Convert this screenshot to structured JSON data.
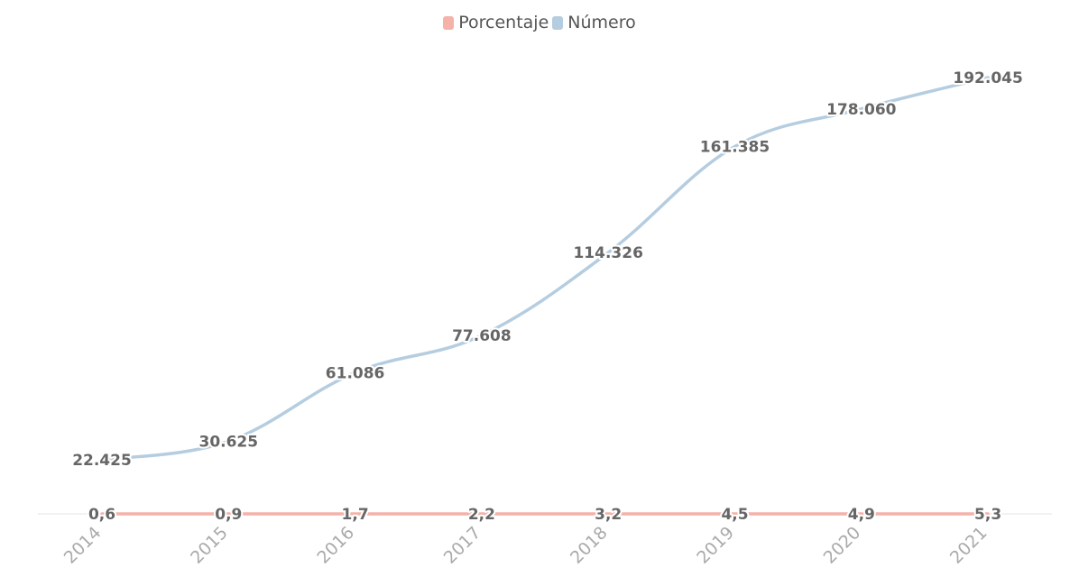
{
  "chart_data": {
    "type": "line",
    "categories": [
      "2014",
      "2015",
      "2016",
      "2017",
      "2018",
      "2019",
      "2020",
      "2021"
    ],
    "series": [
      {
        "name": "Porcentaje",
        "color": "#f4b2a8",
        "values": [
          0.6,
          0.9,
          1.7,
          2.2,
          3.2,
          4.5,
          4.9,
          5.3
        ],
        "labels": [
          "0,6",
          "0,9",
          "1,7",
          "2,2",
          "3,2",
          "4,5",
          "4,9",
          "5,3"
        ]
      },
      {
        "name": "Número",
        "color": "#b5cde0",
        "values": [
          22425,
          30625,
          61086,
          77608,
          114326,
          161385,
          178060,
          192045
        ],
        "labels": [
          "22.425",
          "30.625",
          "61.086",
          "77.608",
          "114.326",
          "161.385",
          "178.060",
          "192.045"
        ]
      }
    ],
    "ylim": [
      0,
      200000
    ],
    "legend_position": "top-center",
    "grid": false
  }
}
